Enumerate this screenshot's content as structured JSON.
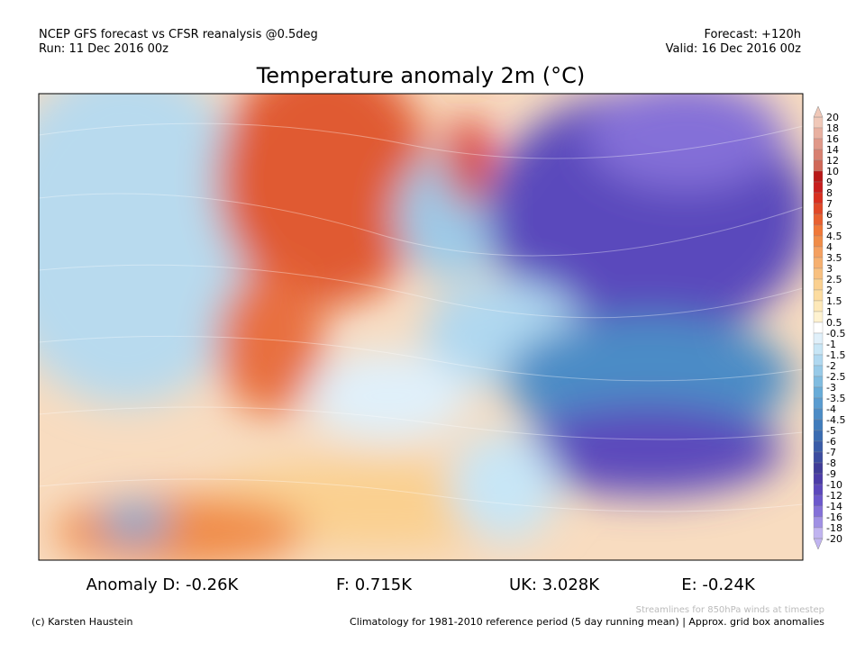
{
  "header": {
    "source": "NCEP GFS forecast vs CFSR reanalysis @0.5deg",
    "run": "Run: 11 Dec 2016 00z",
    "forecast": "Forecast: +120h",
    "valid": "Valid: 16 Dec 2016 00z"
  },
  "title": "Temperature anomaly 2m (°C)",
  "colorbar": {
    "labels": [
      20,
      18,
      16,
      14,
      12,
      10,
      9,
      8,
      7,
      6,
      5,
      4.5,
      4,
      3.5,
      3,
      2.5,
      2,
      1.5,
      1,
      0.5,
      -0.5,
      -1,
      -1.5,
      -2,
      -2.5,
      -3,
      -3.5,
      -4,
      -4.5,
      -5,
      -6,
      -7,
      -8,
      -9,
      -10,
      -12,
      -14,
      -16,
      -18,
      -20
    ],
    "colors": [
      "#f0c8b8",
      "#e8b0a0",
      "#e09888",
      "#d88070",
      "#d06858",
      "#b81818",
      "#c81e1e",
      "#d83020",
      "#e04828",
      "#e86030",
      "#f07838",
      "#f08c48",
      "#f4a060",
      "#f6b070",
      "#f8c080",
      "#fad090",
      "#fcdca0",
      "#fde8b8",
      "#fef2d0",
      "#ffffff",
      "#e0f0fa",
      "#c8e6f6",
      "#b0d8f0",
      "#98cae8",
      "#80bce0",
      "#68acd8",
      "#5a9cd0",
      "#4c8cc6",
      "#407cbc",
      "#3a6cb2",
      "#3a5ca8",
      "#3c4ca0",
      "#403c98",
      "#4c3ca8",
      "#5c48bc",
      "#6c58cc",
      "#8470d8",
      "#a090e4",
      "#c0b4f0"
    ]
  },
  "stats": [
    "Anomaly D: -0.26K",
    "F: 0.715K",
    "UK: 3.028K",
    "E: -0.24K"
  ],
  "footer": {
    "streamlines": "Streamlines for 850hPa winds at timestep",
    "credit": "(c) Karsten Haustein",
    "climatology": "Climatology for 1981-2010 reference period (5 day running mean) | Approx. grid box anomalies"
  }
}
